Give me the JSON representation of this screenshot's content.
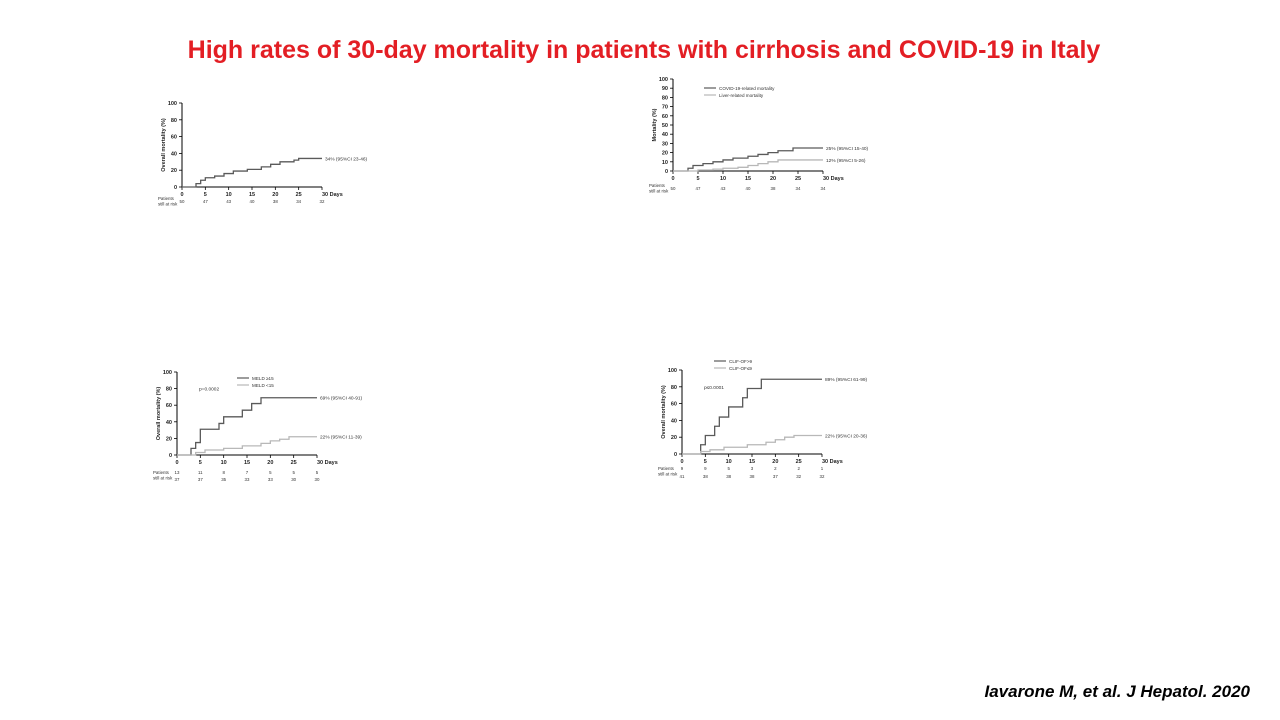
{
  "slide": {
    "title": "High rates of 30-day mortality in patients with cirrhosis and COVID-19 in Italy",
    "citation": "Iavarone M, et al. J Hepatol. 2020"
  },
  "colors": {
    "title": "#e31e24",
    "dark_series": "#5a5a5a",
    "light_series": "#b8b8b8"
  },
  "chart_data": [
    {
      "type": "line",
      "subtype": "kaplan-meier step curve",
      "ylabel": "Overall mortality (%)",
      "xlabel": "Days",
      "x_ticks": [
        "0",
        "5",
        "10",
        "15",
        "20",
        "25",
        "30 Days"
      ],
      "y_ticks": [
        "0",
        "20",
        "40",
        "60",
        "80",
        "100"
      ],
      "xlim": [
        0,
        30
      ],
      "ylim": [
        0,
        100
      ],
      "series": [
        {
          "style": "dark",
          "steps": [
            [
              0,
              0
            ],
            [
              3,
              4
            ],
            [
              4,
              8
            ],
            [
              5,
              11
            ],
            [
              7,
              13
            ],
            [
              9,
              16
            ],
            [
              11,
              19
            ],
            [
              14,
              21
            ],
            [
              17,
              24
            ],
            [
              19,
              27
            ],
            [
              21,
              30
            ],
            [
              24,
              32
            ],
            [
              25,
              34
            ],
            [
              30,
              34
            ]
          ],
          "end_label": "34% (95%CI 23-46)"
        }
      ],
      "at_risk": {
        "header": "Patients still at risk",
        "rows": [
          [
            "50",
            "47",
            "43",
            "40",
            "38",
            "34",
            "32"
          ]
        ]
      }
    },
    {
      "type": "line",
      "subtype": "kaplan-meier step curve",
      "ylabel": "Mortality (%)",
      "xlabel": "Days",
      "x_ticks": [
        "0",
        "5",
        "10",
        "15",
        "20",
        "25",
        "30 Days"
      ],
      "y_ticks": [
        "0",
        "10",
        "20",
        "30",
        "40",
        "50",
        "60",
        "70",
        "80",
        "90",
        "100"
      ],
      "xlim": [
        0,
        30
      ],
      "ylim": [
        0,
        100
      ],
      "legend": [
        "COVID-19-related mortality",
        "Liver-related mortality"
      ],
      "legend_position": "top",
      "series": [
        {
          "name": "COVID-19-related mortality",
          "style": "dark",
          "steps": [
            [
              0,
              0
            ],
            [
              3,
              3
            ],
            [
              4,
              6
            ],
            [
              6,
              8
            ],
            [
              8,
              10
            ],
            [
              10,
              12
            ],
            [
              12,
              14
            ],
            [
              15,
              16
            ],
            [
              17,
              18
            ],
            [
              19,
              20
            ],
            [
              21,
              22
            ],
            [
              24,
              25
            ],
            [
              30,
              25
            ]
          ],
          "end_label": "25% (95%CI 15-40)"
        },
        {
          "name": "Liver-related mortality",
          "style": "light",
          "steps": [
            [
              0,
              0
            ],
            [
              5,
              1
            ],
            [
              8,
              2
            ],
            [
              10,
              3
            ],
            [
              13,
              4
            ],
            [
              15,
              6
            ],
            [
              17,
              8
            ],
            [
              19,
              10
            ],
            [
              21,
              12
            ],
            [
              30,
              12
            ]
          ],
          "end_label": "12% (95%CI 5-26)"
        }
      ],
      "at_risk": {
        "header": "Patients still at risk",
        "rows": [
          [
            "50",
            "47",
            "43",
            "40",
            "38",
            "34",
            "34"
          ]
        ]
      }
    },
    {
      "type": "line",
      "subtype": "kaplan-meier step curve",
      "ylabel": "Overall mortality (%)",
      "xlabel": "Days",
      "x_ticks": [
        "0",
        "5",
        "10",
        "15",
        "20",
        "25",
        "30 Days"
      ],
      "y_ticks": [
        "0",
        "20",
        "40",
        "60",
        "80",
        "100"
      ],
      "xlim": [
        0,
        30
      ],
      "ylim": [
        0,
        100
      ],
      "annotation": "p=0.0002",
      "legend": [
        "MELD ≥15",
        "MELD <15"
      ],
      "legend_position": "top-right",
      "series": [
        {
          "name": "MELD ≥15",
          "style": "dark",
          "steps": [
            [
              0,
              0
            ],
            [
              3,
              8
            ],
            [
              4,
              15
            ],
            [
              5,
              31
            ],
            [
              8,
              31
            ],
            [
              9,
              38
            ],
            [
              10,
              46
            ],
            [
              14,
              54
            ],
            [
              16,
              62
            ],
            [
              18,
              69
            ],
            [
              30,
              69
            ]
          ],
          "end_label": "69% (95%CI 40-91)"
        },
        {
          "name": "MELD <15",
          "style": "light",
          "steps": [
            [
              0,
              0
            ],
            [
              4,
              3
            ],
            [
              6,
              6
            ],
            [
              10,
              8
            ],
            [
              14,
              11
            ],
            [
              18,
              14
            ],
            [
              20,
              17
            ],
            [
              22,
              19
            ],
            [
              24,
              22
            ],
            [
              30,
              22
            ]
          ],
          "end_label": "22% (95%CI 11-39)"
        }
      ],
      "at_risk": {
        "header": "Patients still at risk",
        "rows": [
          [
            "13",
            "11",
            "8",
            "7",
            "5",
            "5",
            "5"
          ],
          [
            "37",
            "37",
            "35",
            "33",
            "33",
            "30",
            "30"
          ]
        ]
      }
    },
    {
      "type": "line",
      "subtype": "kaplan-meier step curve",
      "ylabel": "Overall mortality (%)",
      "xlabel": "Days",
      "x_ticks": [
        "0",
        "5",
        "10",
        "15",
        "20",
        "25",
        "30 Days"
      ],
      "y_ticks": [
        "0",
        "20",
        "40",
        "60",
        "80",
        "100"
      ],
      "xlim": [
        0,
        30
      ],
      "ylim": [
        0,
        100
      ],
      "annotation": "p≤0.0001",
      "legend": [
        "CLIF-OF>9",
        "CLIF-OF≤9"
      ],
      "legend_position": "top",
      "series": [
        {
          "name": "CLIF-OF>9",
          "style": "dark",
          "steps": [
            [
              0,
              0
            ],
            [
              4,
              11
            ],
            [
              5,
              22
            ],
            [
              7,
              33
            ],
            [
              8,
              44
            ],
            [
              10,
              56
            ],
            [
              13,
              67
            ],
            [
              14,
              78
            ],
            [
              17,
              89
            ],
            [
              30,
              89
            ]
          ],
          "end_label": "89% (95%CI 61-99)"
        },
        {
          "name": "CLIF-OF≤9",
          "style": "light",
          "steps": [
            [
              0,
              0
            ],
            [
              4,
              3
            ],
            [
              6,
              5
            ],
            [
              9,
              8
            ],
            [
              14,
              11
            ],
            [
              18,
              14
            ],
            [
              20,
              17
            ],
            [
              22,
              20
            ],
            [
              24,
              22
            ],
            [
              30,
              22
            ]
          ],
          "end_label": "22% (95%CI 20-36)"
        }
      ],
      "at_risk": {
        "header": "Patients still at risk",
        "rows": [
          [
            "9",
            "9",
            "5",
            "3",
            "2",
            "2",
            "1"
          ],
          [
            "41",
            "38",
            "38",
            "38",
            "37",
            "32",
            "32"
          ]
        ]
      }
    }
  ]
}
